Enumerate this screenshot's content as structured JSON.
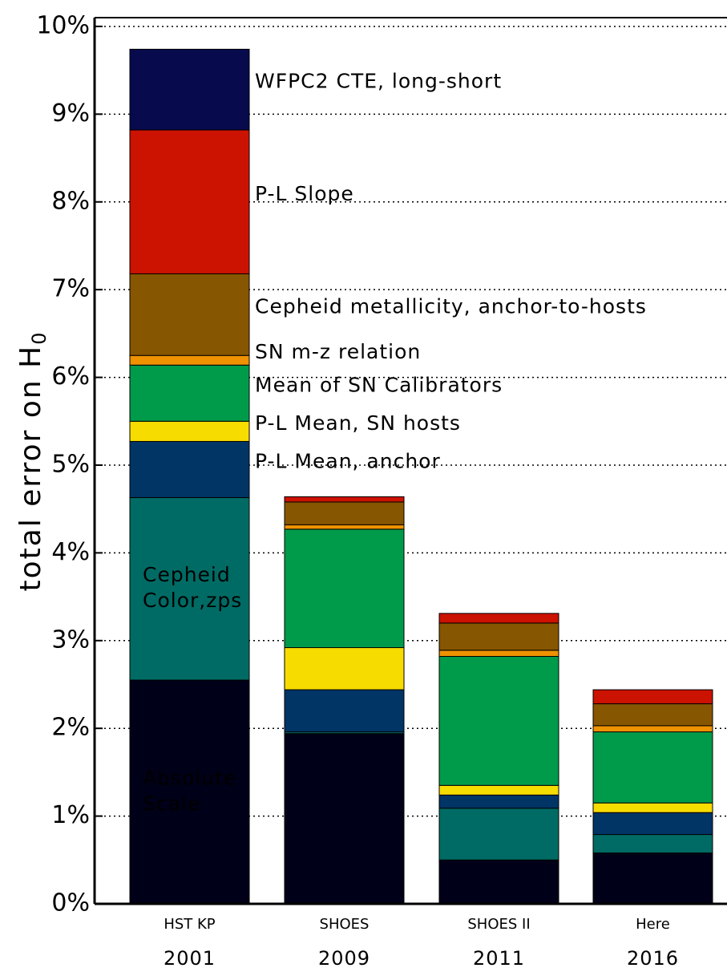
{
  "chart_data": {
    "type": "stacked_bar",
    "ylabel": {
      "text": "total error on H",
      "subscript": "0"
    },
    "categories": [
      "HST KP",
      "SHOES",
      "SHOES II",
      "Here"
    ],
    "years": [
      "2001",
      "2009",
      "2011",
      "2016"
    ],
    "ylim": [
      0,
      10.1
    ],
    "yticks": [
      {
        "value": 0,
        "label": "0%"
      },
      {
        "value": 1,
        "label": "1%"
      },
      {
        "value": 2,
        "label": "2%"
      },
      {
        "value": 3,
        "label": "3%"
      },
      {
        "value": 4,
        "label": "4%"
      },
      {
        "value": 5,
        "label": "5%"
      },
      {
        "value": 6,
        "label": "6%"
      },
      {
        "value": 7,
        "label": "7%"
      },
      {
        "value": 8,
        "label": "8%"
      },
      {
        "value": 9,
        "label": "9%"
      },
      {
        "value": 10,
        "label": "10%"
      }
    ],
    "grid": true,
    "series": [
      {
        "name": [
          "Absolute",
          "Scale"
        ],
        "color": "#000018",
        "label_color": "#f5e000",
        "label_inside": true,
        "values": [
          2.55,
          1.94,
          0.5,
          0.58
        ]
      },
      {
        "name": [
          "Cepheid",
          "Color,zps"
        ],
        "color": "#006b64",
        "label_color": "#f5e000",
        "label_inside": true,
        "values": [
          2.08,
          0.02,
          0.59,
          0.21
        ]
      },
      {
        "name": "P-L Mean, anchor",
        "color": "#003566",
        "label_color": "#000000",
        "label_inside": false,
        "values": [
          0.64,
          0.48,
          0.15,
          0.25
        ]
      },
      {
        "name": "P-L Mean, SN hosts",
        "color": "#f7dc00",
        "label_color": "#000000",
        "label_inside": false,
        "values": [
          0.23,
          0.48,
          0.11,
          0.11
        ]
      },
      {
        "name": "Mean of SN Calibrators",
        "color": "#009b4a",
        "label_color": "#000000",
        "label_inside": false,
        "values": [
          0.64,
          1.35,
          1.47,
          0.81
        ]
      },
      {
        "name": "SN m-z relation",
        "color": "#ee9200",
        "label_color": "#000000",
        "label_inside": false,
        "values": [
          0.11,
          0.05,
          0.07,
          0.07
        ]
      },
      {
        "name": "Cepheid metallicity, anchor-to-hosts",
        "color": "#875600",
        "label_color": "#000000",
        "label_inside": false,
        "values": [
          0.93,
          0.26,
          0.31,
          0.25
        ]
      },
      {
        "name": "P-L Slope",
        "color": "#cc1200",
        "label_color": "#000000",
        "label_inside": false,
        "values": [
          1.64,
          0.06,
          0.11,
          0.16
        ]
      },
      {
        "name": "WFPC2 CTE, long-short",
        "color": "#080a4e",
        "label_color": "#000000",
        "label_inside": false,
        "values": [
          0.92,
          0,
          0,
          0
        ]
      }
    ]
  }
}
